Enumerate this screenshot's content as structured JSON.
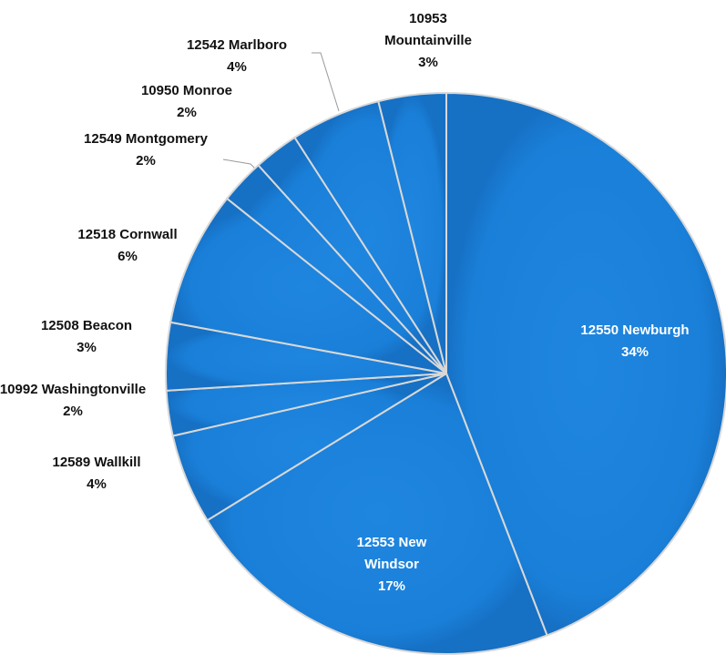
{
  "chart_data": {
    "type": "pie",
    "categories": [
      "12550 Newburgh",
      "12553 New Windsor",
      "12589 Wallkill",
      "10992 Washingtonville",
      "12508 Beacon",
      "12518 Cornwall",
      "12549 Montgomery",
      "10950 Monroe",
      "12542 Marlboro",
      "10953 Mountainville"
    ],
    "values": [
      34,
      17,
      4,
      2,
      3,
      6,
      2,
      2,
      4,
      3
    ],
    "value_labels": [
      "34%",
      "17%",
      "4%",
      "2%",
      "3%",
      "6%",
      "2%",
      "2%",
      "4%",
      "3%"
    ],
    "color": "#1a7fd8"
  }
}
